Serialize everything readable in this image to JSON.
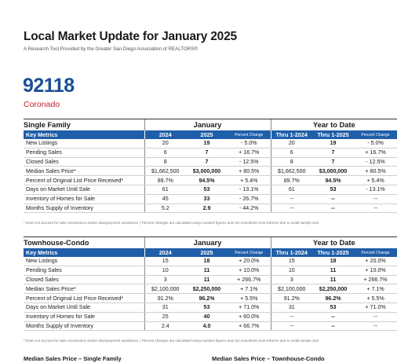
{
  "header": {
    "title": "Local Market Update for January 2025",
    "subtitle": "A Research Tool Provided by the Greater San Diego Association of REALTORS®",
    "zip": "92118",
    "area": "Coronado"
  },
  "single_family": {
    "section": "Single Family",
    "january": "January",
    "ytd": "Year to Date",
    "cols": {
      "key_metrics": "Key Metrics",
      "y2024": "2024",
      "y2025": "2025",
      "pct": "Percent Change",
      "thru2024": "Thru 1-2024",
      "thru2025": "Thru 1-2025",
      "pct2": "Percent Change"
    },
    "rows": [
      {
        "label": "New Listings",
        "a": "20",
        "b": "19",
        "c": "- 5.0%",
        "d": "20",
        "e": "19",
        "f": "- 5.0%"
      },
      {
        "label": "Pending Sales",
        "a": "6",
        "b": "7",
        "c": "+ 16.7%",
        "d": "6",
        "e": "7",
        "f": "+ 16.7%"
      },
      {
        "label": "Closed Sales",
        "a": "8",
        "b": "7",
        "c": "- 12.5%",
        "d": "8",
        "e": "7",
        "f": "- 12.5%"
      },
      {
        "label": "Median Sales Price*",
        "a": "$1,662,500",
        "b": "$3,000,000",
        "c": "+ 80.5%",
        "d": "$1,662,500",
        "e": "$3,000,000",
        "f": "+ 80.5%"
      },
      {
        "label": "Percent of Original List Price Received*",
        "a": "89.7%",
        "b": "94.5%",
        "c": "+ 5.4%",
        "d": "89.7%",
        "e": "94.5%",
        "f": "+ 5.4%"
      },
      {
        "label": "Days on Market Until Sale",
        "a": "61",
        "b": "53",
        "c": "- 13.1%",
        "d": "61",
        "e": "53",
        "f": "- 13.1%"
      },
      {
        "label": "Inventory of Homes for Sale",
        "a": "45",
        "b": "33",
        "c": "- 26.7%",
        "d": "--",
        "e": "--",
        "f": "--"
      },
      {
        "label": "Months Supply of Inventory",
        "a": "5.2",
        "b": "2.9",
        "c": "- 44.2%",
        "d": "--",
        "e": "--",
        "f": "--"
      }
    ],
    "footnote": "* Does not account for sale concessions and/or downpayment assistance.  |  Percent changes are calculated using rounded figures and can sometimes look extreme due to small sample size."
  },
  "townhouse": {
    "section": "Townhouse-Condo",
    "january": "January",
    "ytd": "Year to Date",
    "cols": {
      "key_metrics": "Key Metrics",
      "y2024": "2024",
      "y2025": "2025",
      "pct": "Percent Change",
      "thru2024": "Thru 1-2024",
      "thru2025": "Thru 1-2025",
      "pct2": "Percent Change"
    },
    "rows": [
      {
        "label": "New Listings",
        "a": "15",
        "b": "18",
        "c": "+ 20.0%",
        "d": "15",
        "e": "18",
        "f": "+ 20.0%"
      },
      {
        "label": "Pending Sales",
        "a": "10",
        "b": "11",
        "c": "+ 10.0%",
        "d": "10",
        "e": "11",
        "f": "+ 10.0%"
      },
      {
        "label": "Closed Sales",
        "a": "3",
        "b": "11",
        "c": "+ 266.7%",
        "d": "3",
        "e": "11",
        "f": "+ 266.7%"
      },
      {
        "label": "Median Sales Price*",
        "a": "$2,100,000",
        "b": "$2,250,000",
        "c": "+ 7.1%",
        "d": "$2,100,000",
        "e": "$2,250,000",
        "f": "+ 7.1%"
      },
      {
        "label": "Percent of Original List Price Received*",
        "a": "91.2%",
        "b": "96.2%",
        "c": "+ 5.5%",
        "d": "91.2%",
        "e": "96.2%",
        "f": "+ 5.5%"
      },
      {
        "label": "Days on Market Until Sale",
        "a": "31",
        "b": "53",
        "c": "+ 71.0%",
        "d": "31",
        "e": "53",
        "f": "+ 71.0%"
      },
      {
        "label": "Inventory of Homes for Sale",
        "a": "25",
        "b": "40",
        "c": "+ 60.0%",
        "d": "--",
        "e": "--",
        "f": "--"
      },
      {
        "label": "Months Supply of Inventory",
        "a": "2.4",
        "b": "4.0",
        "c": "+ 66.7%",
        "d": "--",
        "e": "--",
        "f": "--"
      }
    ],
    "footnote": "* Does not account for sale concessions and/or downpayment assistance.  |  Percent changes are calculated using rounded figures and can sometimes look extreme due to small sample size."
  },
  "bottom": {
    "chart1_title": "Median Sales Price – Single Family",
    "chart2_title": "Median Sales Price – Townhouse-Condo"
  }
}
